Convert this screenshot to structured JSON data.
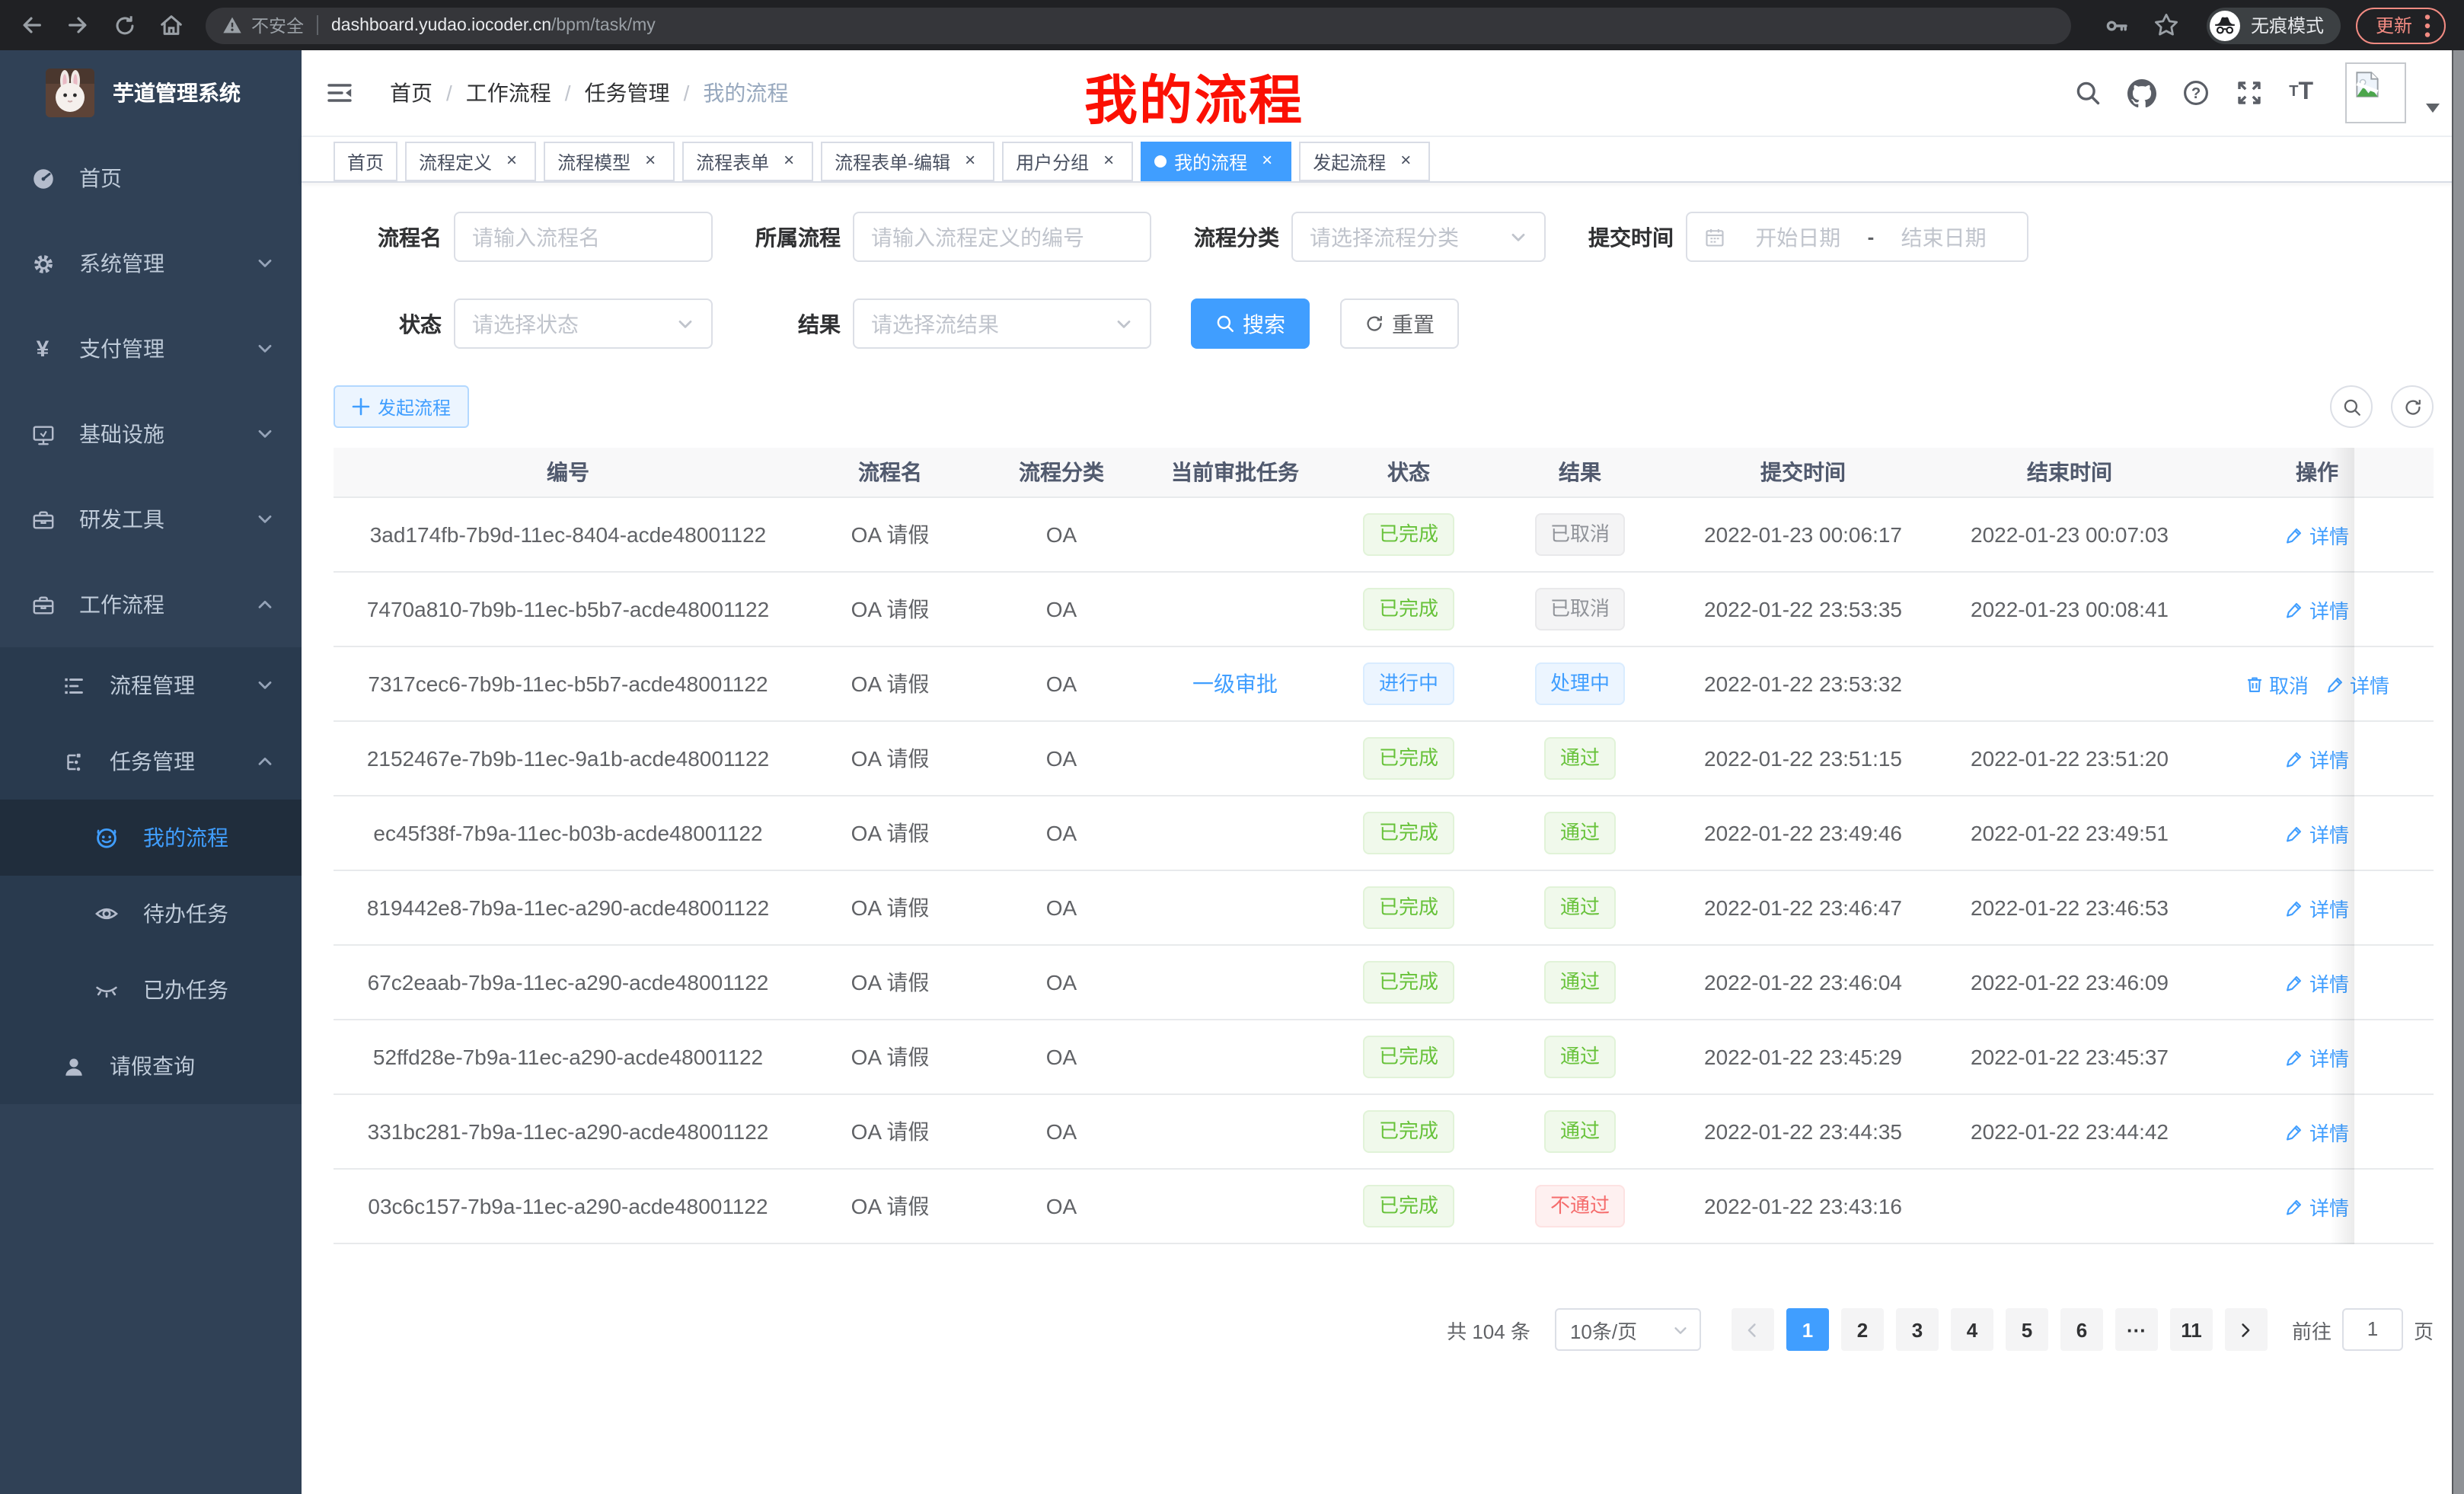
{
  "colors": {
    "primary": "#409eff",
    "success": "#67c23a",
    "info": "#909399",
    "danger": "#f56c6c",
    "sidebar_bg": "#304156",
    "chrome_bg": "#202124",
    "annotation_red": "#fb1003"
  },
  "browser": {
    "security_label": "不安全",
    "url_host": "dashboard.yudao.iocoder.cn",
    "url_path": "/bpm/task/my",
    "incognito_label": "无痕模式",
    "update_label": "更新"
  },
  "sidebar": {
    "logo_title": "芋道管理系统",
    "items": [
      {
        "label": "首页",
        "icon": "dashboard-icon",
        "level": 1
      },
      {
        "label": "系统管理",
        "icon": "gear-icon",
        "level": 1,
        "arrow": "down"
      },
      {
        "label": "支付管理",
        "icon": "yen-icon",
        "level": 1,
        "arrow": "down"
      },
      {
        "label": "基础设施",
        "icon": "monitor-icon",
        "level": 1,
        "arrow": "down"
      },
      {
        "label": "研发工具",
        "icon": "toolbox-icon",
        "level": 1,
        "arrow": "down"
      },
      {
        "label": "工作流程",
        "icon": "briefcase-icon",
        "level": 1,
        "arrow": "up"
      },
      {
        "label": "流程管理",
        "icon": "list-icon",
        "level": 2,
        "arrow": "down"
      },
      {
        "label": "任务管理",
        "icon": "tree-icon",
        "level": 2,
        "arrow": "up"
      },
      {
        "label": "我的流程",
        "icon": "face-icon",
        "level": 3,
        "active": true
      },
      {
        "label": "待办任务",
        "icon": "eye-icon",
        "level": 3
      },
      {
        "label": "已办任务",
        "icon": "eye-closed-icon",
        "level": 3
      },
      {
        "label": "请假查询",
        "icon": "user-icon",
        "level": 2
      }
    ]
  },
  "navbar": {
    "breadcrumb": [
      "首页",
      "工作流程",
      "任务管理",
      "我的流程"
    ],
    "annotation": "我的流程"
  },
  "tabs": [
    {
      "label": "首页",
      "closable": false,
      "active": false
    },
    {
      "label": "流程定义",
      "closable": true,
      "active": false
    },
    {
      "label": "流程模型",
      "closable": true,
      "active": false
    },
    {
      "label": "流程表单",
      "closable": true,
      "active": false
    },
    {
      "label": "流程表单-编辑",
      "closable": true,
      "active": false
    },
    {
      "label": "用户分组",
      "closable": true,
      "active": false
    },
    {
      "label": "我的流程",
      "closable": true,
      "active": true
    },
    {
      "label": "发起流程",
      "closable": true,
      "active": false
    }
  ],
  "filters": {
    "row1": [
      {
        "label": "流程名",
        "type": "input",
        "placeholder": "请输入流程名"
      },
      {
        "label": "所属流程",
        "type": "input",
        "placeholder": "请输入流程定义的编号"
      },
      {
        "label": "流程分类",
        "type": "select",
        "placeholder": "请选择流程分类"
      },
      {
        "label": "提交时间",
        "type": "daterange",
        "start_placeholder": "开始日期",
        "separator": "-",
        "end_placeholder": "结束日期"
      }
    ],
    "row2": [
      {
        "label": "状态",
        "type": "select",
        "placeholder": "请选择状态"
      },
      {
        "label": "结果",
        "type": "select",
        "placeholder": "请选择流结果"
      }
    ],
    "search_label": "搜索",
    "reset_label": "重置"
  },
  "toolbar": {
    "create_label": "发起流程"
  },
  "table": {
    "columns": [
      "编号",
      "流程名",
      "流程分类",
      "当前审批任务",
      "状态",
      "结果",
      "提交时间",
      "结束时间",
      "操作"
    ],
    "rows": [
      {
        "id": "3ad174fb-7b9d-11ec-8404-acde48001122",
        "name": "OA 请假",
        "category": "OA",
        "task": "",
        "status": {
          "text": "已完成",
          "type": "success"
        },
        "result": {
          "text": "已取消",
          "type": "info"
        },
        "submit_time": "2022-01-23 00:06:17",
        "end_time": "2022-01-23 00:07:03",
        "actions": [
          {
            "label": "详情",
            "icon": "edit-icon",
            "name": "detail"
          }
        ]
      },
      {
        "id": "7470a810-7b9b-11ec-b5b7-acde48001122",
        "name": "OA 请假",
        "category": "OA",
        "task": "",
        "status": {
          "text": "已完成",
          "type": "success"
        },
        "result": {
          "text": "已取消",
          "type": "info"
        },
        "submit_time": "2022-01-22 23:53:35",
        "end_time": "2022-01-23 00:08:41",
        "actions": [
          {
            "label": "详情",
            "icon": "edit-icon",
            "name": "detail"
          }
        ]
      },
      {
        "id": "7317cec6-7b9b-11ec-b5b7-acde48001122",
        "name": "OA 请假",
        "category": "OA",
        "task": "一级审批",
        "status": {
          "text": "进行中",
          "type": "primary"
        },
        "result": {
          "text": "处理中",
          "type": "primary"
        },
        "submit_time": "2022-01-22 23:53:32",
        "end_time": "",
        "actions": [
          {
            "label": "取消",
            "icon": "delete-icon",
            "name": "cancel"
          },
          {
            "label": "详情",
            "icon": "edit-icon",
            "name": "detail"
          }
        ]
      },
      {
        "id": "2152467e-7b9b-11ec-9a1b-acde48001122",
        "name": "OA 请假",
        "category": "OA",
        "task": "",
        "status": {
          "text": "已完成",
          "type": "success"
        },
        "result": {
          "text": "通过",
          "type": "success"
        },
        "submit_time": "2022-01-22 23:51:15",
        "end_time": "2022-01-22 23:51:20",
        "actions": [
          {
            "label": "详情",
            "icon": "edit-icon",
            "name": "detail"
          }
        ]
      },
      {
        "id": "ec45f38f-7b9a-11ec-b03b-acde48001122",
        "name": "OA 请假",
        "category": "OA",
        "task": "",
        "status": {
          "text": "已完成",
          "type": "success"
        },
        "result": {
          "text": "通过",
          "type": "success"
        },
        "submit_time": "2022-01-22 23:49:46",
        "end_time": "2022-01-22 23:49:51",
        "actions": [
          {
            "label": "详情",
            "icon": "edit-icon",
            "name": "detail"
          }
        ]
      },
      {
        "id": "819442e8-7b9a-11ec-a290-acde48001122",
        "name": "OA 请假",
        "category": "OA",
        "task": "",
        "status": {
          "text": "已完成",
          "type": "success"
        },
        "result": {
          "text": "通过",
          "type": "success"
        },
        "submit_time": "2022-01-22 23:46:47",
        "end_time": "2022-01-22 23:46:53",
        "actions": [
          {
            "label": "详情",
            "icon": "edit-icon",
            "name": "detail"
          }
        ]
      },
      {
        "id": "67c2eaab-7b9a-11ec-a290-acde48001122",
        "name": "OA 请假",
        "category": "OA",
        "task": "",
        "status": {
          "text": "已完成",
          "type": "success"
        },
        "result": {
          "text": "通过",
          "type": "success"
        },
        "submit_time": "2022-01-22 23:46:04",
        "end_time": "2022-01-22 23:46:09",
        "actions": [
          {
            "label": "详情",
            "icon": "edit-icon",
            "name": "detail"
          }
        ]
      },
      {
        "id": "52ffd28e-7b9a-11ec-a290-acde48001122",
        "name": "OA 请假",
        "category": "OA",
        "task": "",
        "status": {
          "text": "已完成",
          "type": "success"
        },
        "result": {
          "text": "通过",
          "type": "success"
        },
        "submit_time": "2022-01-22 23:45:29",
        "end_time": "2022-01-22 23:45:37",
        "actions": [
          {
            "label": "详情",
            "icon": "edit-icon",
            "name": "detail"
          }
        ]
      },
      {
        "id": "331bc281-7b9a-11ec-a290-acde48001122",
        "name": "OA 请假",
        "category": "OA",
        "task": "",
        "status": {
          "text": "已完成",
          "type": "success"
        },
        "result": {
          "text": "通过",
          "type": "success"
        },
        "submit_time": "2022-01-22 23:44:35",
        "end_time": "2022-01-22 23:44:42",
        "actions": [
          {
            "label": "详情",
            "icon": "edit-icon",
            "name": "detail"
          }
        ]
      },
      {
        "id": "03c6c157-7b9a-11ec-a290-acde48001122",
        "name": "OA 请假",
        "category": "OA",
        "task": "",
        "status": {
          "text": "已完成",
          "type": "success"
        },
        "result": {
          "text": "不通过",
          "type": "danger"
        },
        "submit_time": "2022-01-22 23:43:16",
        "end_time": "",
        "actions": [
          {
            "label": "详情",
            "icon": "edit-icon",
            "name": "detail"
          }
        ]
      }
    ]
  },
  "pagination": {
    "total_label": "共 104 条",
    "page_size_label": "10条/页",
    "pages": [
      {
        "label": "1",
        "active": true
      },
      {
        "label": "2"
      },
      {
        "label": "3"
      },
      {
        "label": "4"
      },
      {
        "label": "5"
      },
      {
        "label": "6"
      },
      {
        "label": "···",
        "ellipsis": true
      },
      {
        "label": "11"
      }
    ],
    "goto_label": "前往",
    "goto_value": "1",
    "page_unit_label": "页"
  }
}
